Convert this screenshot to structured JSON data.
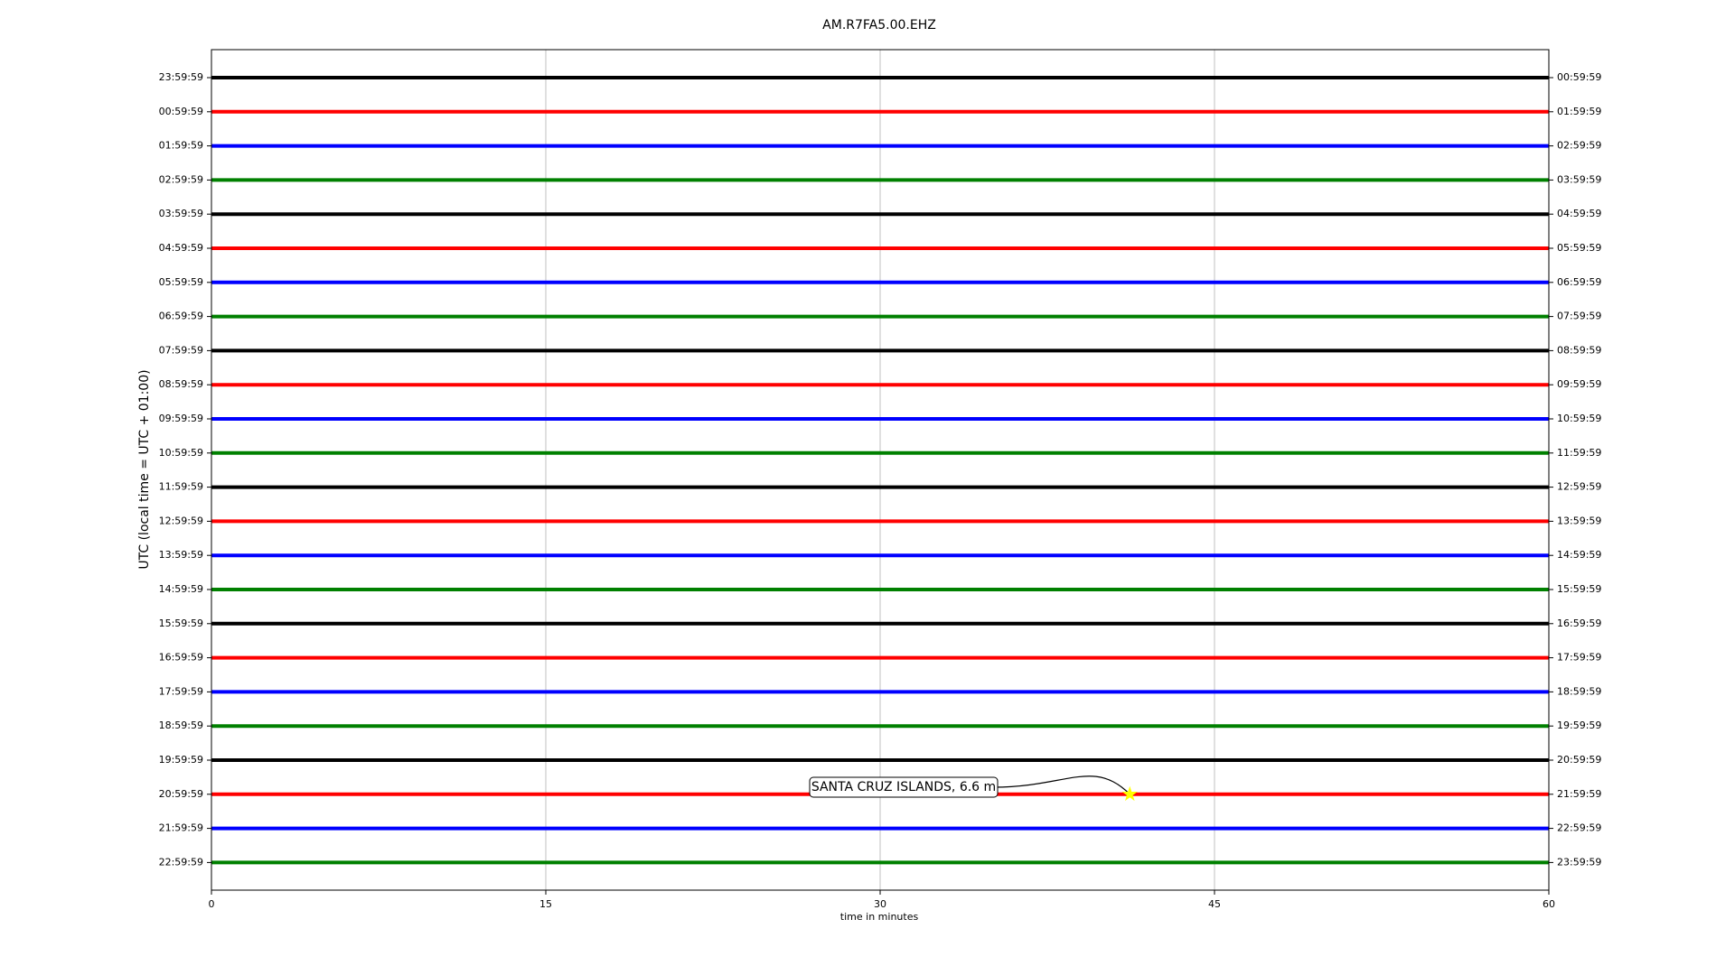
{
  "chart_data": {
    "type": "helicorder",
    "title": "AM.R7FA5.00.EHZ",
    "xlabel": "time in minutes",
    "ylabel": "UTC (local time = UTC + 01:00)",
    "xlim": [
      0,
      60
    ],
    "xticks": [
      0,
      15,
      30,
      45,
      60
    ],
    "grid": true,
    "rows": [
      {
        "label": "23:59:59",
        "right_label": "00:59:59",
        "color": "#000000"
      },
      {
        "label": "00:59:59",
        "right_label": "01:59:59",
        "color": "#ff0000"
      },
      {
        "label": "01:59:59",
        "right_label": "02:59:59",
        "color": "#0000ff"
      },
      {
        "label": "02:59:59",
        "right_label": "03:59:59",
        "color": "#008000"
      },
      {
        "label": "03:59:59",
        "right_label": "04:59:59",
        "color": "#000000"
      },
      {
        "label": "04:59:59",
        "right_label": "05:59:59",
        "color": "#ff0000"
      },
      {
        "label": "05:59:59",
        "right_label": "06:59:59",
        "color": "#0000ff"
      },
      {
        "label": "06:59:59",
        "right_label": "07:59:59",
        "color": "#008000"
      },
      {
        "label": "07:59:59",
        "right_label": "08:59:59",
        "color": "#000000"
      },
      {
        "label": "08:59:59",
        "right_label": "09:59:59",
        "color": "#ff0000"
      },
      {
        "label": "09:59:59",
        "right_label": "10:59:59",
        "color": "#0000ff"
      },
      {
        "label": "10:59:59",
        "right_label": "11:59:59",
        "color": "#008000"
      },
      {
        "label": "11:59:59",
        "right_label": "12:59:59",
        "color": "#000000"
      },
      {
        "label": "12:59:59",
        "right_label": "13:59:59",
        "color": "#ff0000"
      },
      {
        "label": "13:59:59",
        "right_label": "14:59:59",
        "color": "#0000ff"
      },
      {
        "label": "14:59:59",
        "right_label": "15:59:59",
        "color": "#008000"
      },
      {
        "label": "15:59:59",
        "right_label": "16:59:59",
        "color": "#000000"
      },
      {
        "label": "16:59:59",
        "right_label": "17:59:59",
        "color": "#ff0000"
      },
      {
        "label": "17:59:59",
        "right_label": "18:59:59",
        "color": "#0000ff"
      },
      {
        "label": "18:59:59",
        "right_label": "19:59:59",
        "color": "#008000"
      },
      {
        "label": "19:59:59",
        "right_label": "20:59:59",
        "color": "#000000"
      },
      {
        "label": "20:59:59",
        "right_label": "21:59:59",
        "color": "#ff0000"
      },
      {
        "label": "21:59:59",
        "right_label": "22:59:59",
        "color": "#0000ff"
      },
      {
        "label": "22:59:59",
        "right_label": "23:59:59",
        "color": "#008000"
      }
    ],
    "event": {
      "label": "SANTA CRUZ ISLANDS, 6.6 m",
      "minute": 41.2,
      "row": 21,
      "color": "#ffff00"
    }
  }
}
